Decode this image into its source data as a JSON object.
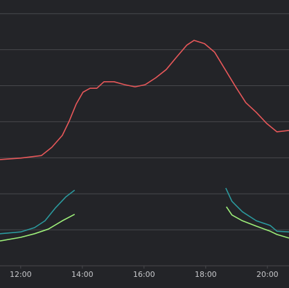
{
  "chart_data": {
    "type": "line",
    "xlim": [
      11.33,
      20.7
    ],
    "ylim": [
      0,
      7.4
    ],
    "grid_values": [
      0,
      1,
      2,
      3,
      4,
      5,
      6,
      7
    ],
    "xticks": [
      {
        "value": 12,
        "label": "12:00"
      },
      {
        "value": 14,
        "label": "14:00"
      },
      {
        "value": 16,
        "label": "16:00"
      },
      {
        "value": 18,
        "label": "18:00"
      },
      {
        "value": 20,
        "label": "20:00"
      }
    ],
    "series": [
      {
        "color": "#e8585a",
        "x": [
          11.33,
          12.0,
          12.67,
          13.01,
          13.35,
          13.57,
          13.8,
          14.02,
          14.25,
          14.47,
          14.7,
          15.03,
          15.37,
          15.71,
          16.04,
          16.38,
          16.72,
          17.06,
          17.39,
          17.62,
          17.96,
          18.29,
          18.63,
          18.97,
          19.3,
          19.64,
          19.98,
          20.31,
          20.7
        ],
        "values": [
          2.95,
          2.99,
          3.06,
          3.29,
          3.62,
          4.01,
          4.49,
          4.82,
          4.93,
          4.93,
          5.11,
          5.11,
          5.03,
          4.97,
          5.03,
          5.22,
          5.45,
          5.8,
          6.13,
          6.26,
          6.17,
          5.93,
          5.45,
          4.97,
          4.53,
          4.26,
          3.95,
          3.72,
          3.76
        ]
      },
      {
        "color": "#2b9a9e",
        "x": [
          11.33,
          12.0,
          12.45,
          12.79,
          13.12,
          13.46,
          13.75,
          16.0,
          18.65,
          18.85,
          19.19,
          19.64,
          20.09,
          20.31,
          20.7
        ],
        "values": [
          0.89,
          0.94,
          1.06,
          1.25,
          1.6,
          1.91,
          2.1,
          null,
          2.16,
          1.79,
          1.5,
          1.25,
          1.12,
          0.96,
          0.94
        ]
      },
      {
        "color": "#9ef07a",
        "x": [
          11.33,
          12.0,
          12.45,
          12.9,
          13.35,
          13.75,
          16.0,
          18.67,
          18.85,
          19.19,
          19.64,
          20.09,
          20.31,
          20.7
        ],
        "values": [
          0.69,
          0.79,
          0.89,
          1.02,
          1.25,
          1.43,
          null,
          1.64,
          1.41,
          1.25,
          1.1,
          0.96,
          0.87,
          0.77
        ]
      }
    ]
  }
}
